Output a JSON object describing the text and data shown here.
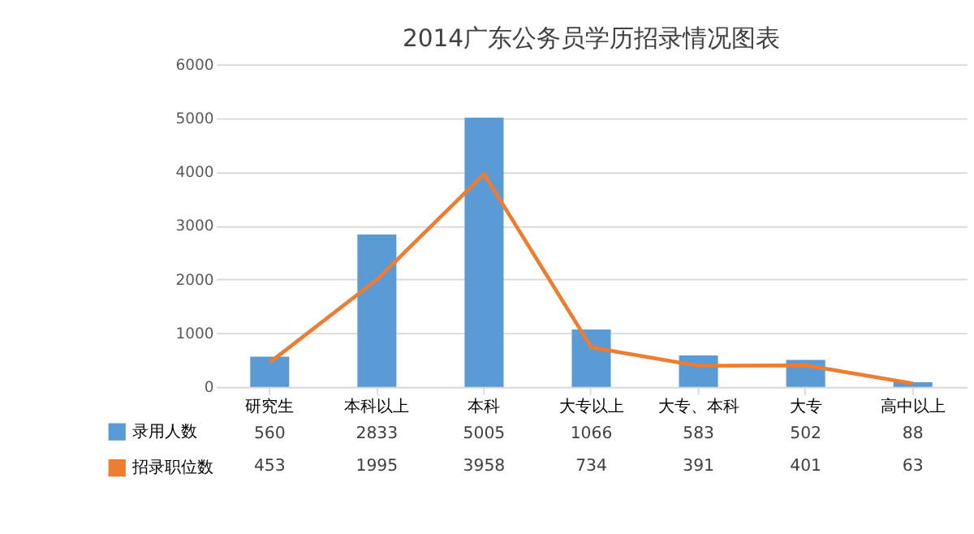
{
  "chart_data": {
    "type": "bar",
    "title": "2014广东公务员学历招录情况图表",
    "categories": [
      "研究生",
      "本科以上",
      "本科",
      "大专以上",
      "大专、本科",
      "大专",
      "高中以上"
    ],
    "series": [
      {
        "name": "录用人数",
        "color": "#5b9bd5",
        "values": [
          560,
          2833,
          5005,
          1066,
          583,
          502,
          88
        ]
      },
      {
        "name": "招录职位数",
        "type": "line",
        "color": "#ed7d31",
        "values": [
          453,
          1995,
          3958,
          734,
          391,
          401,
          63
        ]
      }
    ],
    "ylim": [
      0,
      6000
    ],
    "yticks": [
      0,
      1000,
      2000,
      3000,
      4000,
      5000,
      6000
    ],
    "grid": "y",
    "legend": "bottom",
    "data_labels": true,
    "marker": "none",
    "line_style": "solid"
  }
}
